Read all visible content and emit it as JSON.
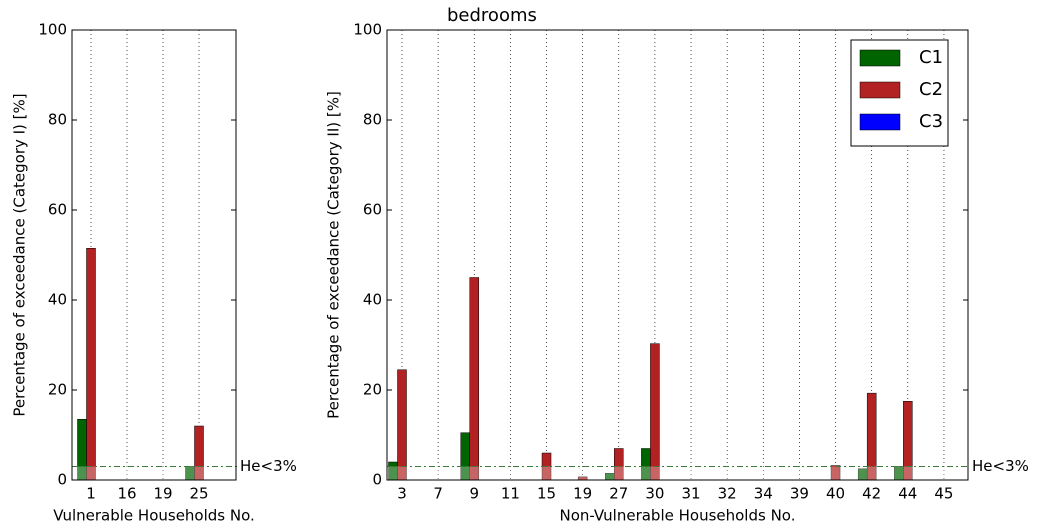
{
  "chart_data": [
    {
      "type": "bar",
      "ylabel": "Percentage of exceedance (Category I) [%]",
      "xlabel": "Vulnerable Households No.",
      "categories": [
        "1",
        "16",
        "19",
        "25"
      ],
      "series": [
        {
          "name": "C1",
          "color": "#006400",
          "values": [
            13.5,
            0,
            0,
            3
          ]
        },
        {
          "name": "C2",
          "color": "#b22222",
          "values": [
            51.5,
            0,
            0,
            12
          ]
        },
        {
          "name": "C3",
          "color": "#0000ff",
          "values": [
            0,
            0,
            0,
            0
          ]
        }
      ],
      "ylim": [
        0,
        100
      ],
      "yticks": [
        0,
        20,
        40,
        60,
        80,
        100
      ],
      "grid": "x",
      "threshold": 3,
      "threshold_label": "He<3%"
    },
    {
      "type": "bar",
      "title": "bedrooms",
      "ylabel": "Percentage of exceedance (Category II) [%]",
      "xlabel": "Non-Vulnerable Households No.",
      "categories": [
        "3",
        "7",
        "9",
        "11",
        "15",
        "19",
        "27",
        "30",
        "31",
        "32",
        "34",
        "39",
        "40",
        "42",
        "44",
        "45"
      ],
      "series": [
        {
          "name": "C1",
          "color": "#006400",
          "values": [
            4,
            0,
            10.5,
            0,
            0,
            0,
            1.5,
            7,
            0,
            0,
            0,
            0,
            0,
            2.5,
            3,
            0
          ]
        },
        {
          "name": "C2",
          "color": "#b22222",
          "values": [
            24.5,
            0,
            45,
            0,
            6,
            0.7,
            7,
            30.3,
            0,
            0,
            0,
            0,
            3.2,
            19.3,
            17.5,
            0
          ]
        },
        {
          "name": "C3",
          "color": "#0000ff",
          "values": [
            0,
            0,
            0,
            0,
            0,
            0,
            0,
            0,
            0,
            0,
            0,
            0,
            0,
            0,
            0,
            0
          ]
        }
      ],
      "ylim": [
        0,
        100
      ],
      "yticks": [
        0,
        20,
        40,
        60,
        80,
        100
      ],
      "grid": "x",
      "legend": "upper right",
      "threshold": 3,
      "threshold_label": "He<3%"
    }
  ]
}
